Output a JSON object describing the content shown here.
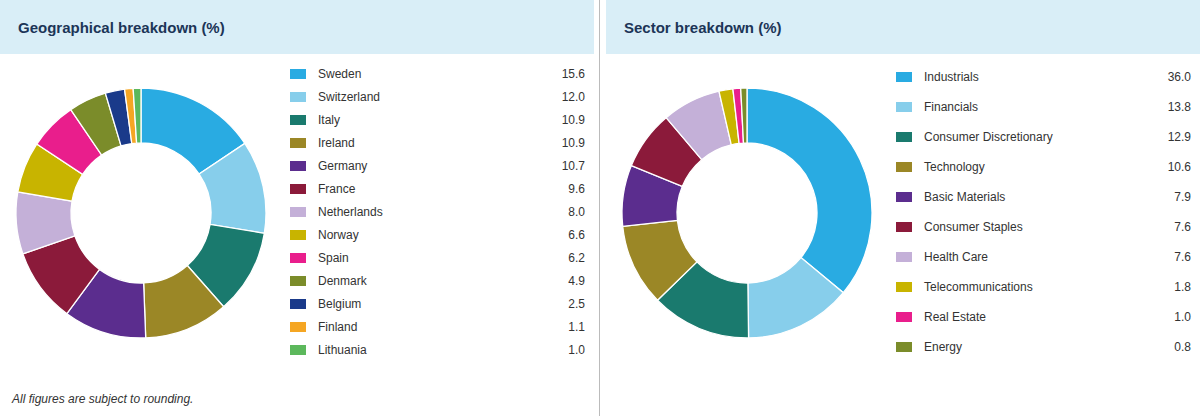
{
  "chart_data": [
    {
      "type": "pie",
      "title": "Geographical breakdown (%)",
      "categories": [
        "Sweden",
        "Switzerland",
        "Italy",
        "Ireland",
        "Germany",
        "France",
        "Netherlands",
        "Norway",
        "Spain",
        "Denmark",
        "Belgium",
        "Finland",
        "Lithuania"
      ],
      "values": [
        15.6,
        12.0,
        10.9,
        10.9,
        10.7,
        9.6,
        8.0,
        6.6,
        6.2,
        4.9,
        2.5,
        1.1,
        1.0
      ],
      "value_labels": [
        "15.6",
        "12.0",
        "10.9",
        "10.9",
        "10.7",
        "9.6",
        "8.0",
        "6.6",
        "6.2",
        "4.9",
        "2.5",
        "1.1",
        "1.0"
      ],
      "colors": [
        "#29ABE2",
        "#87CEEB",
        "#1A7A6E",
        "#9B8726",
        "#5B2D8E",
        "#8B1A3A",
        "#C4B0D8",
        "#C8B400",
        "#E91E8C",
        "#7B8C2A",
        "#1A3A8A",
        "#F5A623",
        "#5CB85C"
      ],
      "annotations": [
        "All figures are subject to rounding."
      ]
    },
    {
      "type": "pie",
      "title": "Sector breakdown (%)",
      "categories": [
        "Industrials",
        "Financials",
        "Consumer Discretionary",
        "Technology",
        "Basic Materials",
        "Consumer Staples",
        "Health Care",
        "Telecommunications",
        "Real Estate",
        "Energy"
      ],
      "values": [
        36.0,
        13.8,
        12.9,
        10.6,
        7.9,
        7.6,
        7.6,
        1.8,
        1.0,
        0.8
      ],
      "value_labels": [
        "36.0",
        "13.8",
        "12.9",
        "10.6",
        "7.9",
        "7.6",
        "7.6",
        "1.8",
        "1.0",
        "0.8"
      ],
      "colors": [
        "#29ABE2",
        "#87CEEB",
        "#1A7A6E",
        "#9B8726",
        "#5B2D8E",
        "#8B1A3A",
        "#C4B0D8",
        "#C8B400",
        "#E91E8C",
        "#7B8C2A"
      ]
    }
  ]
}
